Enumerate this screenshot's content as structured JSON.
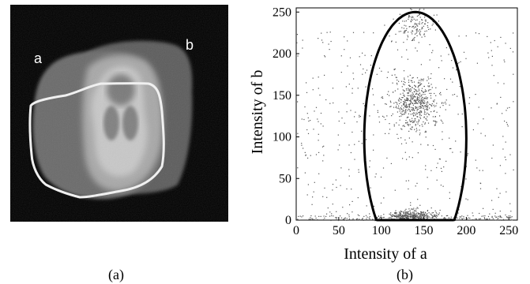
{
  "panel_a": {
    "caption": "(a)",
    "label_a": "a",
    "label_b": "b"
  },
  "panel_b": {
    "caption": "(b)"
  },
  "chart_data": {
    "type": "scatter",
    "xlabel": "Intensity of a",
    "ylabel": "Intensity of b",
    "xlim": [
      0,
      260
    ],
    "ylim": [
      0,
      255
    ],
    "xticks": [
      0,
      50,
      100,
      150,
      200,
      250
    ],
    "yticks": [
      0,
      50,
      100,
      150,
      200,
      250
    ],
    "grid": false,
    "clusters": [
      {
        "center": [
          138,
          140
        ],
        "spread": [
          14,
          16
        ]
      },
      {
        "center": [
          135,
          5
        ],
        "spread": [
          15,
          4
        ]
      },
      {
        "center": [
          140,
          235
        ],
        "spread": [
          10,
          12
        ]
      }
    ],
    "ellipse": {
      "center": [
        140,
        98
      ],
      "semi_axis_x": 60,
      "semi_axis_y": 152
    }
  }
}
